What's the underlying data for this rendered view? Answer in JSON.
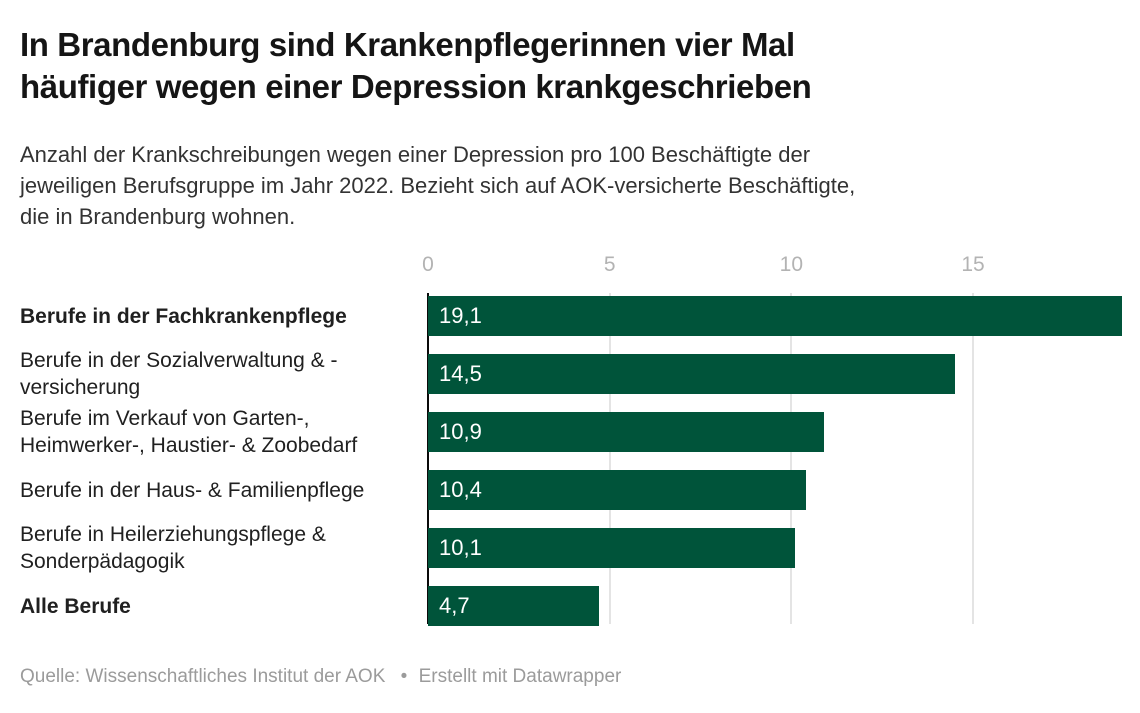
{
  "title": {
    "lines": [
      "In Brandenburg sind Krankenpflegerinnen vier Mal",
      "häufiger wegen einer Depression krankgeschrieben"
    ]
  },
  "subtitle": {
    "lines": [
      "Anzahl der Krankschreibungen wegen einer Depression pro 100 Beschäftigte der",
      "jeweiligen Berufsgruppe im Jahr 2022. Bezieht sich auf AOK-versicherte Beschäftigte,",
      "die in Brandenburg wohnen."
    ]
  },
  "footer": {
    "source_label": "Quelle:",
    "source": "Wissenschaftliches Institut der AOK",
    "separator": "•",
    "byline": "Erstellt mit Datawrapper"
  },
  "colors": {
    "bar": "#00543a",
    "value_label": "#ffffff",
    "axis_tick": "#b3b3b3",
    "gridline": "#e4e4e4",
    "zero_axis": "#0a0a0a",
    "title_text": "#151515",
    "body_text": "#333333",
    "footer_text": "#9b9b9b"
  },
  "chart_data": {
    "type": "bar",
    "orientation": "horizontal",
    "title": "In Brandenburg sind Krankenpflegerinnen vier Mal häufiger wegen einer Depression krankgeschrieben",
    "subtitle": "Anzahl der Krankschreibungen wegen einer Depression pro 100 Beschäftigte der jeweiligen Berufsgruppe im Jahr 2022. Bezieht sich auf AOK-versicherte Beschäftigte, die in Brandenburg wohnen.",
    "categories": [
      "Berufe in der Fachkrankenpflege",
      "Berufe in der Sozialverwaltung & -versicherung",
      "Berufe im Verkauf von Garten-, Heimwerker-, Haustier- & Zoobedarf",
      "Berufe in der Haus- & Familienpflege",
      "Berufe in Heilerziehungspflege & Sonderpädagogik",
      "Alle Berufe"
    ],
    "values": [
      19.1,
      14.5,
      10.9,
      10.4,
      10.1,
      4.7
    ],
    "values_display": [
      "19,1",
      "14,5",
      "10,9",
      "10,4",
      "10,1",
      "4,7"
    ],
    "emphasized_rows": [
      true,
      false,
      false,
      false,
      false,
      true
    ],
    "x_ticks": [
      0,
      5,
      10,
      15
    ],
    "x_tick_labels": [
      "0",
      "5",
      "10",
      "15"
    ],
    "xlim": [
      0,
      19.1
    ],
    "grid": "vertical",
    "legend": "none",
    "bar_color": "#00543a",
    "value_labels_inside": true,
    "source": "Quelle: Wissenschaftliches Institut der AOK",
    "byline": "Erstellt mit Datawrapper"
  }
}
